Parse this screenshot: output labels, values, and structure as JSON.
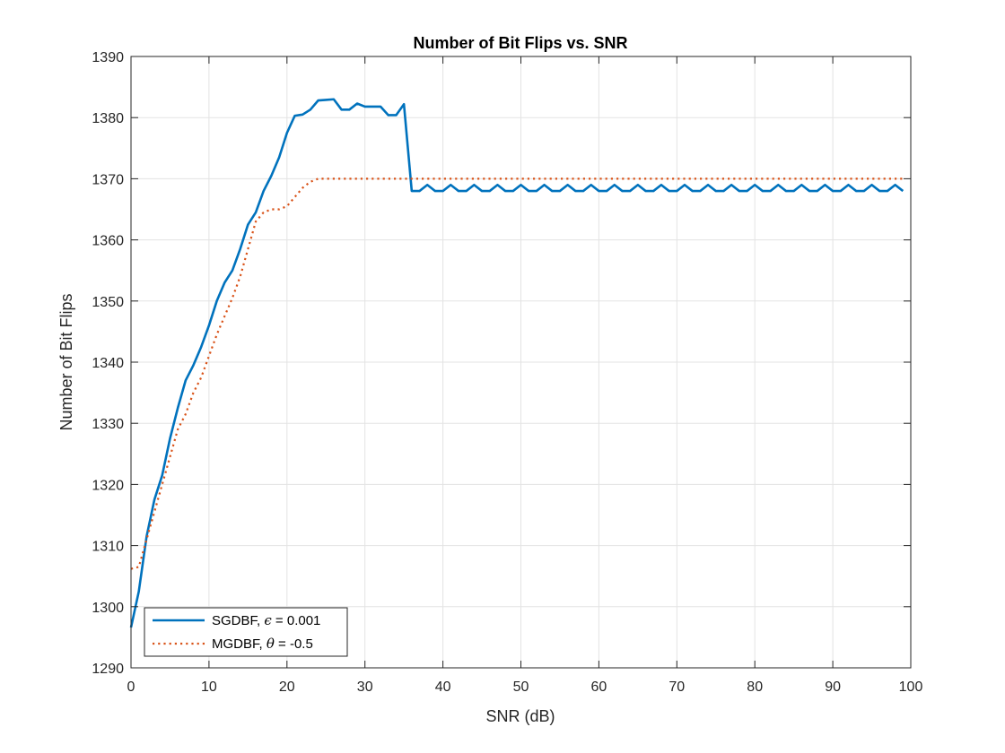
{
  "chart_data": {
    "type": "line",
    "title": "Number of Bit Flips vs. SNR",
    "xlabel": "SNR (dB)",
    "ylabel": "Number of Bit Flips",
    "xlim": [
      0,
      100
    ],
    "ylim": [
      1290,
      1390
    ],
    "xticks": [
      "0",
      "10",
      "20",
      "30",
      "40",
      "50",
      "60",
      "70",
      "80",
      "90",
      "100"
    ],
    "yticks": [
      "1290",
      "1300",
      "1310",
      "1320",
      "1330",
      "1340",
      "1350",
      "1360",
      "1370",
      "1380",
      "1390"
    ],
    "grid": true,
    "legend_position": "bottom-left",
    "series": [
      {
        "name": "SGDBF",
        "param_symbol": "ϵ",
        "param_value": " = 0.001",
        "label_prefix": "SGDBF, ",
        "color": "#0072BD",
        "style": "solid",
        "x": [
          0,
          1,
          2,
          3,
          4,
          5,
          6,
          7,
          8,
          9,
          10,
          11,
          12,
          13,
          14,
          15,
          16,
          17,
          18,
          19,
          20,
          21,
          22,
          23,
          24,
          25,
          26,
          27,
          28,
          29,
          30,
          31,
          32,
          33,
          34,
          35,
          36,
          37,
          38,
          39,
          40,
          41,
          42,
          43,
          44,
          45,
          46,
          47,
          48,
          49,
          50,
          51,
          52,
          53,
          54,
          55,
          56,
          57,
          58,
          59,
          60,
          61,
          62,
          63,
          64,
          65,
          66,
          67,
          68,
          69,
          70,
          71,
          72,
          73,
          74,
          75,
          76,
          77,
          78,
          79,
          80,
          81,
          82,
          83,
          84,
          85,
          86,
          87,
          88,
          89,
          90,
          91,
          92,
          93,
          94,
          95,
          96,
          97,
          98,
          99
        ],
        "y": [
          1296.6,
          1302.5,
          1311.5,
          1317.5,
          1321.5,
          1327.5,
          1332.5,
          1337,
          1339.5,
          1342.5,
          1346,
          1350,
          1353,
          1355,
          1358.5,
          1362.5,
          1364.5,
          1368,
          1370.5,
          1373.5,
          1377.5,
          1380.3,
          1380.5,
          1381.3,
          1382.8,
          1382.9,
          1383,
          1381.3,
          1381.3,
          1382.3,
          1381.8,
          1381.8,
          1381.8,
          1380.4,
          1380.4,
          1382.2,
          1368,
          1368,
          1369,
          1368,
          1368,
          1369,
          1368,
          1368,
          1369,
          1368,
          1368,
          1369,
          1368,
          1368,
          1369,
          1368,
          1368,
          1369,
          1368,
          1368,
          1369,
          1368,
          1368,
          1369,
          1368,
          1368,
          1369,
          1368,
          1368,
          1369,
          1368,
          1368,
          1369,
          1368,
          1368,
          1369,
          1368,
          1368,
          1369,
          1368,
          1368,
          1369,
          1368,
          1368,
          1369,
          1368,
          1368,
          1369,
          1368,
          1368,
          1369,
          1368,
          1368,
          1369,
          1368,
          1368,
          1369,
          1368,
          1368,
          1369,
          1368,
          1368,
          1369,
          1368
        ]
      },
      {
        "name": "MGDBF",
        "param_symbol": "θ",
        "param_value": " = -0.5",
        "label_prefix": "MGDBF, ",
        "color": "#D95319",
        "style": "dotted",
        "x": [
          0,
          1,
          2,
          3,
          4,
          5,
          6,
          7,
          8,
          9,
          10,
          11,
          12,
          13,
          14,
          15,
          16,
          17,
          18,
          19,
          20,
          21,
          22,
          23,
          24,
          25,
          26,
          27,
          28,
          29,
          30,
          31,
          32,
          33,
          34,
          35,
          36,
          37,
          38,
          39,
          40,
          41,
          42,
          43,
          44,
          45,
          46,
          47,
          48,
          49,
          50,
          51,
          52,
          53,
          54,
          55,
          56,
          57,
          58,
          59,
          60,
          61,
          62,
          63,
          64,
          65,
          66,
          67,
          68,
          69,
          70,
          71,
          72,
          73,
          74,
          75,
          76,
          77,
          78,
          79,
          80,
          81,
          82,
          83,
          84,
          85,
          86,
          87,
          88,
          89,
          90,
          91,
          92,
          93,
          94,
          95,
          96,
          97,
          98,
          99
        ],
        "y": [
          1306.2,
          1306.5,
          1311,
          1315.5,
          1320,
          1324.5,
          1329,
          1331.5,
          1335,
          1337.5,
          1341,
          1344.5,
          1347.5,
          1350.5,
          1354,
          1358.5,
          1363,
          1364.5,
          1365,
          1365,
          1365.5,
          1367,
          1368.5,
          1369.5,
          1370,
          1370,
          1370,
          1370,
          1370,
          1370,
          1370,
          1370,
          1370,
          1370,
          1370,
          1370,
          1370,
          1370,
          1370,
          1370,
          1370,
          1370,
          1370,
          1370,
          1370,
          1370,
          1370,
          1370,
          1370,
          1370,
          1370,
          1370,
          1370,
          1370,
          1370,
          1370,
          1370,
          1370,
          1370,
          1370,
          1370,
          1370,
          1370,
          1370,
          1370,
          1370,
          1370,
          1370,
          1370,
          1370,
          1370,
          1370,
          1370,
          1370,
          1370,
          1370,
          1370,
          1370,
          1370,
          1370,
          1370,
          1370,
          1370,
          1370,
          1370,
          1370,
          1370,
          1370,
          1370,
          1370,
          1370,
          1370,
          1370,
          1370,
          1370,
          1370,
          1370,
          1370,
          1370,
          1370
        ]
      }
    ]
  }
}
